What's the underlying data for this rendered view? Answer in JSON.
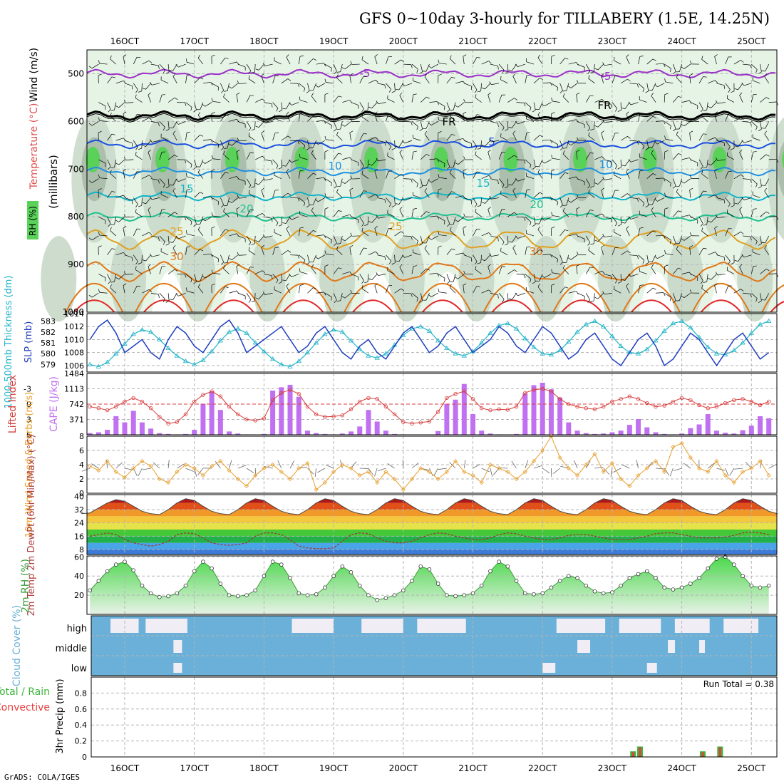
{
  "title": "GFS 0~10day 3-hourly for TILLABERY (1.5E, 14.25N)",
  "footer": "GrADS: COLA/IGES",
  "run_total": "Run Total = 0.38",
  "colors": {
    "grid": "#b4b4b4",
    "rh_fill_light": "#e6f4e6",
    "rh_fill_mid": "#c8d8c8",
    "rh_fill_dark": "#a8baa8",
    "rh_high": "#5ad25a",
    "slp": "#1f3fbf",
    "thickness": "#20b4c8",
    "lifted_index": "#d83c3c",
    "cape": "#c070f0",
    "wind_speed": "#e8a030",
    "cloud": "#6ab0d8",
    "cloud_clear": "#f0eef4",
    "rh2m": "#3c9c3c",
    "precip_total": "#3cb43c",
    "precip_conv": "#e83c3c"
  },
  "chart_data": [
    {
      "name": "upper-air",
      "type": "heatmap",
      "x_ticks": [
        "16OCT",
        "17OCT",
        "18OCT",
        "19OCT",
        "20OCT",
        "21OCT",
        "22OCT",
        "23OCT",
        "24OCT",
        "25OCT"
      ],
      "ylabel": "(millibars)",
      "y_ticks": [
        "500",
        "600",
        "700",
        "800",
        "900",
        "1000"
      ],
      "ylim": [
        450,
        1000
      ],
      "legend_labels": [
        "RH (%)",
        "Temperature (°C)",
        "Wind (m/s)"
      ],
      "isotherm_labels": [
        "-5",
        "-5",
        "FR",
        "FR",
        "5",
        "10",
        "10",
        "15",
        "15",
        "20",
        "20",
        "25",
        "25",
        "30",
        "30"
      ],
      "isotherms_mb": [
        {
          "value": -5,
          "mb": 500
        },
        {
          "value": 0,
          "mb": 588
        },
        {
          "value": 5,
          "mb": 648
        },
        {
          "value": 10,
          "mb": 705
        },
        {
          "value": 15,
          "mb": 757
        },
        {
          "value": 20,
          "mb": 800
        },
        {
          "value": 25,
          "mb": 848
        },
        {
          "value": 30,
          "mb": 915
        }
      ]
    },
    {
      "name": "slp-thickness",
      "type": "line",
      "ylabel_left": "1000-500mb Thickness (dm)",
      "ylabel_right": "SLP (mb)",
      "y_ticks_left": [
        "583",
        "582",
        "581",
        "580",
        "579"
      ],
      "y_ticks_right": [
        "1014",
        "1012",
        "1010",
        "1008",
        "1006"
      ],
      "slp_ylim": [
        1005,
        1014
      ],
      "slp": [
        1009,
        1008,
        1011,
        1010,
        1012,
        1013,
        1011,
        1008,
        1009,
        1010,
        1008,
        1007,
        1010,
        1012,
        1011,
        1009,
        1008,
        1010,
        1012,
        1013,
        1011,
        1008,
        1009,
        1010,
        1011,
        1012,
        1010,
        1008,
        1009,
        1011,
        1012,
        1010,
        1008,
        1007,
        1009,
        1010,
        1008,
        1007,
        1009,
        1011,
        1012,
        1010,
        1008,
        1009,
        1011,
        1012,
        1010,
        1008,
        1009,
        1010,
        1012,
        1011,
        1009,
        1008,
        1010,
        1012,
        1011,
        1009,
        1007,
        1008,
        1010,
        1011,
        1009,
        1007,
        1006,
        1008,
        1010,
        1011,
        1009,
        1006,
        1007,
        1009,
        1011,
        1010,
        1008,
        1006,
        1008,
        1010,
        1011,
        1009,
        1007,
        1008,
        1010,
        1012,
        1011,
        1009,
        1008,
        1010,
        1011,
        1009,
        1008
      ],
      "thickness": [
        580.5,
        580.0,
        579.4,
        579.0,
        578.8,
        579.2,
        580.0,
        580.9,
        581.8,
        582.2,
        582.0,
        581.3,
        580.5,
        579.8,
        579.3,
        579.0,
        579.4,
        580.2,
        581.2,
        582.0,
        582.3,
        581.9,
        581.0,
        580.2,
        579.5,
        579.0,
        578.8,
        579.3,
        580.1,
        581.0,
        581.8,
        582.2,
        582.0,
        581.2,
        580.4,
        579.8,
        579.6,
        580.0,
        580.8,
        581.7,
        582.3,
        582.5,
        582.1,
        581.2,
        580.5,
        580.0,
        579.8,
        580.2,
        581.0,
        581.9,
        582.6,
        582.8,
        582.3,
        581.4,
        580.6,
        580.0,
        579.9,
        580.3,
        581.1,
        582.0,
        582.7,
        583.0,
        582.5,
        581.6,
        580.7,
        580.1,
        580.0,
        580.4,
        581.2,
        582.1,
        582.8,
        583.0,
        582.4,
        581.5,
        580.6,
        580.0,
        579.9,
        580.3,
        581.0,
        581.9,
        582.7,
        583.0,
        582.5,
        581.6,
        580.8,
        580.2,
        580.1,
        580.5,
        581.2,
        582.0,
        582.5
      ]
    },
    {
      "name": "cape-lifted-index",
      "type": "bar",
      "ylabel_left": "Lifted Index",
      "ylabel_right": "CAPE (J/kg)",
      "y_ticks_left": [
        "-3",
        "0",
        "3",
        "6"
      ],
      "y_ticks_right": [
        "1484",
        "1113",
        "742",
        "371"
      ],
      "cape_ylim": [
        0,
        1484
      ],
      "cape": [
        150,
        80,
        60,
        40,
        60,
        120,
        450,
        300,
        580,
        300,
        150,
        40,
        20,
        10,
        20,
        120,
        750,
        1050,
        600,
        80,
        30,
        10,
        0,
        20,
        1070,
        1150,
        1210,
        920,
        100,
        40,
        20,
        10,
        30,
        80,
        200,
        600,
        320,
        100,
        20,
        10,
        0,
        0,
        0,
        90,
        750,
        850,
        1230,
        500,
        100,
        30,
        10,
        0,
        20,
        1000,
        1200,
        1260,
        1100,
        900,
        300,
        100,
        40,
        20,
        30,
        60,
        100,
        240,
        380,
        180,
        60,
        20,
        10,
        30,
        160,
        250,
        500,
        100,
        50,
        30,
        110,
        220,
        450,
        400,
        120,
        600,
        550,
        400,
        340,
        180,
        20,
        50,
        100
      ],
      "lifted_index": [
        1.5,
        2.0,
        1.0,
        0.5,
        0.8,
        1.2,
        0.5,
        -0.5,
        -1.2,
        -0.5,
        0.8,
        2.5,
        3.8,
        3.5,
        2.0,
        -0.5,
        -1.8,
        -2.5,
        -1.5,
        0.5,
        2.0,
        3.0,
        3.2,
        2.8,
        -0.8,
        -2.2,
        -2.8,
        -2.0,
        0.5,
        2.0,
        2.5,
        2.4,
        2.2,
        1.0,
        -0.5,
        -1.2,
        -1.0,
        0.5,
        2.0,
        3.5,
        3.8,
        3.6,
        3.4,
        1.5,
        -1.2,
        -2.0,
        -2.5,
        -1.0,
        0.8,
        1.2,
        1.0,
        1.1,
        0.5,
        -2.2,
        -2.8,
        -3.0,
        -2.5,
        -1.0,
        0.0,
        0.5,
        0.8,
        1.0,
        0.5,
        -0.5,
        -1.0,
        -1.5,
        -1.0,
        -0.2,
        0.5,
        0.3,
        -0.5,
        -1.2,
        -0.8,
        0.2,
        0.8,
        0.5,
        -0.2,
        -0.8,
        -1.0,
        -0.5,
        0.2,
        -0.5,
        -1.0,
        -1.5,
        -0.8,
        0.2,
        0.5,
        0.3,
        -0.2,
        0.3,
        0.5
      ]
    },
    {
      "name": "10m-wind",
      "type": "line",
      "ylabel": "10m Wind Speed & Barbs (m/s)",
      "y_ticks": [
        "8",
        "6",
        "4",
        "2",
        "0"
      ],
      "ylim": [
        0,
        8
      ],
      "wind_speed": [
        0.5,
        3.5,
        4.0,
        3.8,
        3.2,
        4.5,
        3.0,
        2.2,
        3.5,
        4.5,
        3.8,
        2.0,
        1.5,
        3.0,
        4.0,
        3.5,
        2.5,
        3.8,
        4.5,
        3.2,
        2.0,
        1.0,
        2.5,
        3.5,
        4.0,
        3.0,
        2.0,
        3.5,
        4.2,
        0.5,
        1.5,
        3.0,
        4.0,
        3.5,
        2.5,
        3.0,
        1.5,
        3.0,
        2.0,
        0.5,
        2.0,
        3.5,
        3.0,
        2.0,
        3.0,
        4.5,
        3.0,
        2.5,
        1.5,
        4.0,
        3.5,
        3.0,
        2.0,
        3.0,
        4.5,
        6.0,
        8.0,
        5.0,
        3.5,
        2.5,
        4.0,
        5.5,
        3.0,
        4.2,
        2.0,
        1.0,
        2.5,
        3.5,
        4.5,
        3.0,
        6.5,
        7.0,
        5.0,
        3.5,
        3.0,
        4.5,
        2.5,
        1.5,
        3.0,
        3.5,
        4.5,
        2.5,
        3.5,
        5.5,
        6.5,
        5.5,
        4.0,
        3.5,
        3.0,
        3.5,
        3.0
      ]
    },
    {
      "name": "2m-temp-dewpoint",
      "type": "area",
      "ylabel": "2m Temp 2m DewPt (6hr Min/Max) (°C)",
      "y_ticks": [
        "40",
        "32",
        "24",
        "16",
        "8"
      ],
      "ylim": [
        5,
        41
      ],
      "temp": [
        31,
        30,
        29.5,
        30,
        33,
        36,
        38,
        37,
        34,
        31,
        29.5,
        29,
        32,
        36,
        38.5,
        37.5,
        34,
        31,
        29.5,
        29,
        32,
        36,
        38.5,
        37.5,
        34,
        31,
        29.5,
        29,
        32,
        36,
        38.5,
        37.5,
        34,
        31,
        29.5,
        29,
        32,
        36,
        38.5,
        37.5,
        34,
        31,
        29.5,
        29,
        32,
        36,
        38.5,
        37.5,
        34,
        31,
        29.5,
        29,
        32,
        36,
        38.5,
        37.5,
        34,
        31,
        29.5,
        29,
        32,
        36,
        38.5,
        37.5,
        34,
        31,
        29.5,
        29,
        32,
        36,
        38.5,
        37.5,
        34,
        31,
        29.5,
        29,
        32,
        36,
        38.5,
        37.5,
        34,
        31,
        29.5,
        29,
        31,
        33,
        33,
        31,
        30,
        29,
        28
      ],
      "dewpoint": [
        11,
        12,
        14,
        16,
        17,
        18,
        17,
        14,
        12,
        11,
        10,
        11,
        13,
        17,
        18,
        17.5,
        15,
        12,
        11,
        10.5,
        11,
        12,
        16,
        18,
        18,
        17,
        14,
        10,
        9,
        8.5,
        8.5,
        9,
        13,
        17,
        18,
        17.5,
        15,
        13,
        12,
        12,
        13,
        15,
        17,
        18,
        17.5,
        16,
        15,
        14,
        14,
        15,
        17,
        18,
        17.5,
        16,
        15,
        14,
        14,
        15,
        16.5,
        17,
        17,
        16,
        15,
        14,
        14,
        14,
        15,
        16,
        17.5,
        18,
        18,
        17,
        16,
        15,
        15,
        15,
        15.5,
        16.5,
        18,
        18.5,
        18,
        17,
        16,
        15.5,
        15,
        15,
        15,
        15.5,
        16,
        17,
        17.5
      ]
    },
    {
      "name": "2m-rh",
      "type": "area",
      "ylabel": "2m RH (%)",
      "y_ticks": [
        "60",
        "40",
        "20"
      ],
      "ylim": [
        0,
        61
      ],
      "rh2m": [
        28,
        22,
        23,
        25,
        35,
        45,
        52,
        55,
        46,
        30,
        22,
        18,
        19,
        22,
        30,
        45,
        55,
        48,
        32,
        20,
        19,
        20,
        25,
        40,
        55,
        52,
        38,
        22,
        20,
        21,
        28,
        40,
        50,
        44,
        30,
        20,
        15,
        17,
        20,
        25,
        35,
        50,
        47,
        32,
        20,
        19,
        20,
        22,
        30,
        45,
        55,
        50,
        35,
        22,
        21,
        22,
        28,
        35,
        40,
        38,
        30,
        24,
        22,
        23,
        30,
        38,
        42,
        45,
        38,
        28,
        26,
        28,
        32,
        38,
        48,
        58,
        60,
        52,
        40,
        30,
        28,
        30,
        32,
        33,
        35,
        38,
        40,
        43,
        48
      ]
    },
    {
      "name": "cloud-cover",
      "type": "heatmap",
      "ylabel": "Cloud Cover (%)",
      "levels": [
        "high",
        "middle",
        "low"
      ]
    },
    {
      "name": "precip",
      "type": "bar",
      "ylabel": "3hr Precip (mm)",
      "legend_labels": [
        "Total / Rain",
        "Convective"
      ],
      "y_ticks": [
        "0.8",
        "0.6",
        "0.4",
        "0.2",
        "0"
      ],
      "ylim": [
        0,
        1.0
      ],
      "bars": [
        {
          "day_index": 7.3,
          "total": 0.07,
          "conv": 0.06
        },
        {
          "day_index": 7.4,
          "total": 0.13,
          "conv": 0.12
        },
        {
          "day_index": 8.3,
          "total": 0.07,
          "conv": 0.06
        },
        {
          "day_index": 8.55,
          "total": 0.13,
          "conv": 0.12
        }
      ]
    }
  ]
}
